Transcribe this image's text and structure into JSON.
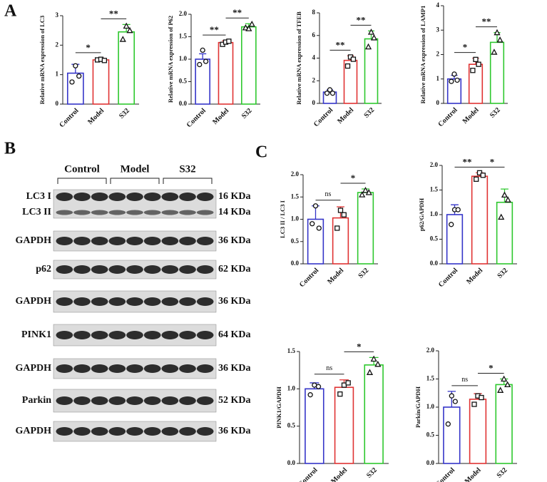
{
  "panel_labels": {
    "a": "A",
    "b": "B",
    "c": "C"
  },
  "blot": {
    "groups": [
      "Control",
      "Model",
      "S32"
    ],
    "rows": [
      {
        "labels": [
          "LC3 I",
          "LC3 II"
        ],
        "sizes": [
          "16 KDa",
          "14 KDa"
        ]
      },
      {
        "labels": [
          "GAPDH"
        ],
        "sizes": [
          "36 KDa"
        ]
      },
      {
        "labels": [
          "p62"
        ],
        "sizes": [
          "62 KDa"
        ]
      },
      {
        "labels": [
          "GAPDH"
        ],
        "sizes": [
          "36 KDa"
        ]
      },
      {
        "labels": [
          "PINK1"
        ],
        "sizes": [
          "64 KDa"
        ]
      },
      {
        "labels": [
          "GAPDH"
        ],
        "sizes": [
          "36 KDa"
        ]
      },
      {
        "labels": [
          "Parkin"
        ],
        "sizes": [
          "52 KDa"
        ]
      },
      {
        "labels": [
          "GAPDH"
        ],
        "sizes": [
          "36 KDa"
        ]
      }
    ]
  },
  "chart_data": [
    {
      "type": "bar",
      "ylabel": "Relative mRNA expression of LC3",
      "categories": [
        "Control",
        "Model",
        "S32"
      ],
      "colors": [
        "#3535c8",
        "#e03333",
        "#2ec82e"
      ],
      "values": [
        1.05,
        1.5,
        2.45
      ],
      "errors": [
        0.3,
        0.05,
        0.25
      ],
      "points": [
        [
          0.75,
          1.3,
          0.95
        ],
        [
          1.5,
          1.52,
          1.48
        ],
        [
          2.2,
          2.65,
          2.5
        ]
      ],
      "ylim": [
        0,
        3
      ],
      "yticks": [
        0,
        1,
        2,
        3
      ],
      "annotations": [
        {
          "label": "*",
          "pair": [
            0,
            1
          ]
        },
        {
          "label": "**",
          "pair": [
            1,
            2
          ]
        }
      ]
    },
    {
      "type": "bar",
      "ylabel": "Relative mRNA expression of P62",
      "categories": [
        "Control",
        "Model",
        "S32"
      ],
      "colors": [
        "#3535c8",
        "#e03333",
        "#2ec82e"
      ],
      "values": [
        1.0,
        1.37,
        1.72
      ],
      "errors": [
        0.12,
        0.04,
        0.07
      ],
      "points": [
        [
          0.88,
          1.2,
          0.95
        ],
        [
          1.33,
          1.38,
          1.4
        ],
        [
          1.7,
          1.68,
          1.78
        ]
      ],
      "ylim": [
        0,
        2
      ],
      "yticks": [
        {
          "value": 0,
          "label": "0.0"
        },
        0.5,
        {
          "value": 1,
          "label": "1.0"
        },
        1.5,
        {
          "value": 2,
          "label": "2.0"
        }
      ],
      "annotations": [
        {
          "label": "**",
          "pair": [
            0,
            1
          ]
        },
        {
          "label": "**",
          "pair": [
            1,
            2
          ]
        }
      ]
    },
    {
      "type": "bar",
      "ylabel": "Relative mRNA expression of TFEB",
      "categories": [
        "Control",
        "Model",
        "S32"
      ],
      "colors": [
        "#3535c8",
        "#e03333",
        "#2ec82e"
      ],
      "values": [
        1.0,
        3.8,
        5.7
      ],
      "errors": [
        0.2,
        0.4,
        0.7
      ],
      "points": [
        [
          0.9,
          1.2,
          0.9
        ],
        [
          3.3,
          4.1,
          3.9
        ],
        [
          5.0,
          6.3,
          5.8
        ]
      ],
      "ylim": [
        0,
        8
      ],
      "yticks": [
        0,
        2,
        4,
        6,
        8
      ],
      "annotations": [
        {
          "label": "**",
          "pair": [
            0,
            1
          ]
        },
        {
          "label": "**",
          "pair": [
            1,
            2
          ]
        }
      ]
    },
    {
      "type": "bar",
      "ylabel": "Relative mRNA expression of LAMP1",
      "categories": [
        "Control",
        "Model",
        "S32"
      ],
      "colors": [
        "#3535c8",
        "#e03333",
        "#2ec82e"
      ],
      "values": [
        1.0,
        1.6,
        2.5
      ],
      "errors": [
        0.15,
        0.25,
        0.4
      ],
      "points": [
        [
          0.9,
          1.2,
          0.95
        ],
        [
          1.35,
          1.8,
          1.6
        ],
        [
          2.1,
          2.9,
          2.6
        ]
      ],
      "ylim": [
        0,
        4
      ],
      "yticks": [
        0,
        1,
        2,
        3,
        4
      ],
      "annotations": [
        {
          "label": "*",
          "pair": [
            0,
            1
          ]
        },
        {
          "label": "**",
          "pair": [
            1,
            2
          ]
        }
      ]
    },
    {
      "type": "bar",
      "ylabel": "LC3 II / LC3 I",
      "categories": [
        "Control",
        "Model",
        "S32"
      ],
      "colors": [
        "#3535c8",
        "#e03333",
        "#2ec82e"
      ],
      "values": [
        1.0,
        1.03,
        1.6
      ],
      "errors": [
        0.3,
        0.25,
        0.08
      ],
      "points": [
        [
          0.9,
          1.3,
          0.8
        ],
        [
          0.8,
          1.2,
          1.1
        ],
        [
          1.55,
          1.65,
          1.6
        ]
      ],
      "ylim": [
        0,
        2
      ],
      "yticks": [
        {
          "value": 0,
          "label": "0.0"
        },
        0.5,
        {
          "value": 1,
          "label": "1.0"
        },
        1.5,
        {
          "value": 2,
          "label": "2.0"
        }
      ],
      "annotations": [
        {
          "label": "ns",
          "pair": [
            0,
            1
          ]
        },
        {
          "label": "*",
          "pair": [
            1,
            2
          ]
        }
      ]
    },
    {
      "type": "bar",
      "ylabel": "p62/GAPDH",
      "categories": [
        "Control",
        "Model",
        "S32"
      ],
      "colors": [
        "#3535c8",
        "#e03333",
        "#2ec82e"
      ],
      "values": [
        1.0,
        1.78,
        1.25
      ],
      "errors": [
        0.2,
        0.07,
        0.27
      ],
      "points": [
        [
          0.8,
          1.1,
          1.1
        ],
        [
          1.72,
          1.85,
          1.8
        ],
        [
          0.95,
          1.4,
          1.3
        ]
      ],
      "ylim": [
        0,
        2
      ],
      "yticks": [
        {
          "value": 0,
          "label": "0.0"
        },
        0.5,
        {
          "value": 1,
          "label": "1.0"
        },
        1.5,
        {
          "value": 2,
          "label": "2.0"
        }
      ],
      "annotations": [
        {
          "label": "**",
          "pair": [
            0,
            1
          ]
        },
        {
          "label": "*",
          "pair": [
            1,
            2
          ]
        }
      ]
    },
    {
      "type": "bar",
      "ylabel": "PINK1/GAPDH",
      "categories": [
        "Control",
        "Model",
        "S32"
      ],
      "colors": [
        "#3535c8",
        "#e03333",
        "#2ec82e"
      ],
      "values": [
        1.0,
        1.02,
        1.32
      ],
      "errors": [
        0.08,
        0.1,
        0.1
      ],
      "points": [
        [
          0.92,
          1.05,
          1.03
        ],
        [
          0.93,
          1.05,
          1.08
        ],
        [
          1.22,
          1.4,
          1.33
        ]
      ],
      "ylim": [
        0,
        1.5
      ],
      "yticks": [
        {
          "value": 0,
          "label": "0.0"
        },
        0.5,
        {
          "value": 1,
          "label": "1.0"
        },
        1.5
      ],
      "annotations": [
        {
          "label": "ns",
          "pair": [
            0,
            1
          ]
        },
        {
          "label": "*",
          "pair": [
            1,
            2
          ]
        }
      ]
    },
    {
      "type": "bar",
      "ylabel": "Parkin/GAPDH",
      "categories": [
        "Control",
        "Model",
        "S32"
      ],
      "colors": [
        "#3535c8",
        "#e03333",
        "#2ec82e"
      ],
      "values": [
        1.0,
        1.14,
        1.4
      ],
      "errors": [
        0.28,
        0.1,
        0.1
      ],
      "points": [
        [
          0.7,
          1.2,
          1.1
        ],
        [
          1.05,
          1.2,
          1.17
        ],
        [
          1.3,
          1.5,
          1.4
        ]
      ],
      "ylim": [
        0,
        2
      ],
      "yticks": [
        {
          "value": 0,
          "label": "0.0"
        },
        0.5,
        {
          "value": 1,
          "label": "1.0"
        },
        1.5,
        {
          "value": 2,
          "label": "2.0"
        }
      ],
      "annotations": [
        {
          "label": "ns",
          "pair": [
            0,
            1
          ]
        },
        {
          "label": "*",
          "pair": [
            1,
            2
          ]
        }
      ]
    }
  ]
}
